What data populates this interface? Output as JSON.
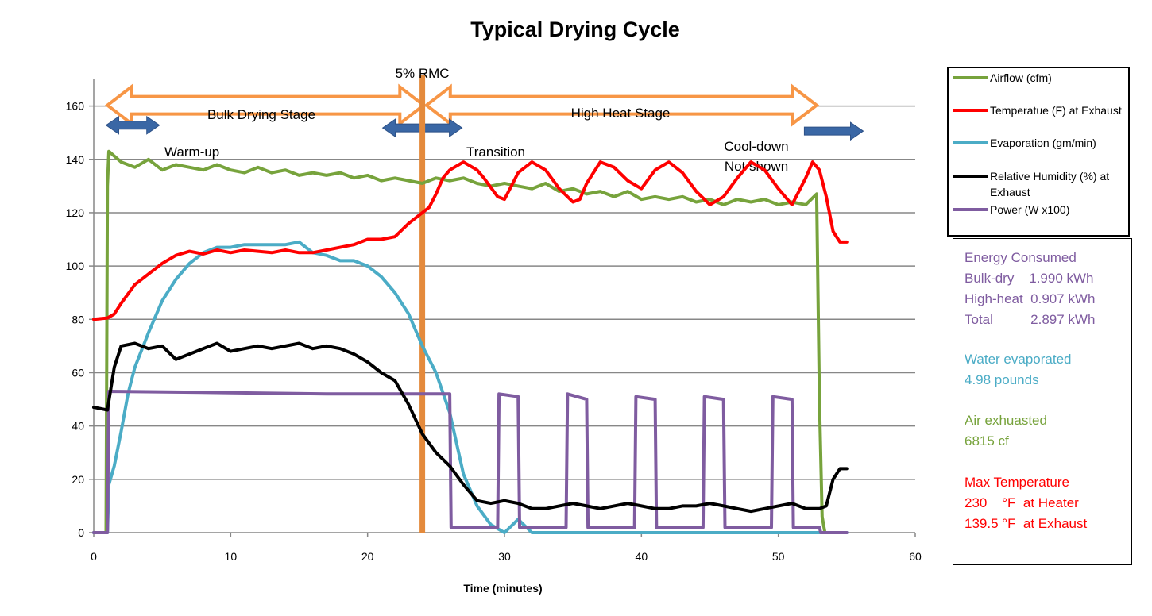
{
  "chart_data": {
    "type": "line",
    "title": "Typical Drying Cycle",
    "xlabel": "Time (minutes)",
    "ylabel": "",
    "xlim": [
      0,
      60
    ],
    "ylim": [
      0,
      170
    ],
    "x_ticks": [
      "0",
      "10",
      "20",
      "30",
      "40",
      "50",
      "60"
    ],
    "y_ticks": [
      "0",
      "20",
      "40",
      "60",
      "80",
      "100",
      "120",
      "140",
      "160"
    ],
    "grid": "horizontal",
    "legend_position": "top-right",
    "series": [
      {
        "name": "Airflow (cfm)",
        "color": "#77A33C",
        "points": [
          [
            0,
            0
          ],
          [
            0.9,
            0
          ],
          [
            1.0,
            130
          ],
          [
            1.1,
            143
          ],
          [
            2,
            139
          ],
          [
            3,
            137
          ],
          [
            4,
            140
          ],
          [
            5,
            136
          ],
          [
            6,
            138
          ],
          [
            7,
            137
          ],
          [
            8,
            136
          ],
          [
            9,
            138
          ],
          [
            10,
            136
          ],
          [
            11,
            135
          ],
          [
            12,
            137
          ],
          [
            13,
            135
          ],
          [
            14,
            136
          ],
          [
            15,
            134
          ],
          [
            16,
            135
          ],
          [
            17,
            134
          ],
          [
            18,
            135
          ],
          [
            19,
            133
          ],
          [
            20,
            134
          ],
          [
            21,
            132
          ],
          [
            22,
            133
          ],
          [
            23,
            132
          ],
          [
            24,
            131
          ],
          [
            25,
            133
          ],
          [
            26,
            132
          ],
          [
            27,
            133
          ],
          [
            28,
            131
          ],
          [
            29,
            130
          ],
          [
            30,
            131
          ],
          [
            31,
            130
          ],
          [
            32,
            129
          ],
          [
            33,
            131
          ],
          [
            34,
            128
          ],
          [
            35,
            129
          ],
          [
            36,
            127
          ],
          [
            37,
            128
          ],
          [
            38,
            126
          ],
          [
            39,
            128
          ],
          [
            40,
            125
          ],
          [
            41,
            126
          ],
          [
            42,
            125
          ],
          [
            43,
            126
          ],
          [
            44,
            124
          ],
          [
            45,
            125
          ],
          [
            46,
            123
          ],
          [
            47,
            125
          ],
          [
            48,
            124
          ],
          [
            49,
            125
          ],
          [
            50,
            123
          ],
          [
            51,
            124
          ],
          [
            52,
            123
          ],
          [
            52.8,
            127
          ],
          [
            53.0,
            50
          ],
          [
            53.2,
            6
          ],
          [
            53.4,
            0
          ]
        ]
      },
      {
        "name": "Temperatue (F) at Exhaust",
        "color": "#FF0000",
        "points": [
          [
            0,
            80
          ],
          [
            1,
            80.5
          ],
          [
            1.5,
            82
          ],
          [
            2,
            86
          ],
          [
            3,
            93
          ],
          [
            4,
            97
          ],
          [
            5,
            101
          ],
          [
            6,
            104
          ],
          [
            7,
            105.5
          ],
          [
            8,
            104.5
          ],
          [
            9,
            106
          ],
          [
            10,
            105
          ],
          [
            11,
            106
          ],
          [
            12,
            105.5
          ],
          [
            13,
            105
          ],
          [
            14,
            106
          ],
          [
            15,
            105
          ],
          [
            16,
            105
          ],
          [
            17,
            106
          ],
          [
            18,
            107
          ],
          [
            19,
            108
          ],
          [
            20,
            110
          ],
          [
            21,
            110
          ],
          [
            22,
            111
          ],
          [
            23,
            116
          ],
          [
            24,
            120
          ],
          [
            24.5,
            122
          ],
          [
            25,
            127
          ],
          [
            25.5,
            133
          ],
          [
            26,
            136
          ],
          [
            27,
            139
          ],
          [
            28,
            136
          ],
          [
            28.5,
            133
          ],
          [
            29.5,
            126
          ],
          [
            30,
            125
          ],
          [
            30.5,
            130
          ],
          [
            31,
            135
          ],
          [
            32,
            139
          ],
          [
            33,
            136
          ],
          [
            34,
            129
          ],
          [
            35,
            124
          ],
          [
            35.5,
            125
          ],
          [
            36,
            131
          ],
          [
            37,
            139
          ],
          [
            38,
            137
          ],
          [
            39,
            132
          ],
          [
            40,
            129
          ],
          [
            41,
            136
          ],
          [
            42,
            139
          ],
          [
            43,
            135
          ],
          [
            44,
            128
          ],
          [
            45,
            123
          ],
          [
            46,
            126
          ],
          [
            47,
            133
          ],
          [
            48,
            139
          ],
          [
            49,
            136
          ],
          [
            50,
            129
          ],
          [
            51,
            123
          ],
          [
            52,
            133
          ],
          [
            52.5,
            139
          ],
          [
            53,
            136
          ],
          [
            53.5,
            126
          ],
          [
            54,
            113
          ],
          [
            54.5,
            109
          ],
          [
            55,
            109
          ]
        ]
      },
      {
        "name": "Evaporation (gm/min)",
        "color": "#4BACC6",
        "points": [
          [
            0,
            0
          ],
          [
            1,
            0
          ],
          [
            1.1,
            18
          ],
          [
            1.5,
            25
          ],
          [
            2,
            38
          ],
          [
            2.5,
            52
          ],
          [
            3,
            62
          ],
          [
            4,
            75
          ],
          [
            5,
            87
          ],
          [
            6,
            95
          ],
          [
            7,
            101
          ],
          [
            8,
            105
          ],
          [
            9,
            107
          ],
          [
            10,
            107
          ],
          [
            11,
            108
          ],
          [
            12,
            108
          ],
          [
            13,
            108
          ],
          [
            14,
            108
          ],
          [
            15,
            109
          ],
          [
            16,
            105
          ],
          [
            17,
            104
          ],
          [
            18,
            102
          ],
          [
            19,
            102
          ],
          [
            20,
            100
          ],
          [
            21,
            96
          ],
          [
            22,
            90
          ],
          [
            23,
            82
          ],
          [
            24,
            70
          ],
          [
            25,
            60
          ],
          [
            26,
            45
          ],
          [
            27,
            22
          ],
          [
            28,
            10
          ],
          [
            29,
            3
          ],
          [
            30,
            0
          ],
          [
            31,
            5
          ],
          [
            32,
            0
          ],
          [
            35,
            0
          ],
          [
            55,
            0
          ]
        ]
      },
      {
        "name": "Relative Humidity (%) at Exhaust",
        "color": "#000000",
        "points": [
          [
            0,
            47
          ],
          [
            1,
            46
          ],
          [
            1.5,
            62
          ],
          [
            2,
            70
          ],
          [
            3,
            71
          ],
          [
            4,
            69
          ],
          [
            5,
            70
          ],
          [
            6,
            65
          ],
          [
            7,
            67
          ],
          [
            8,
            69
          ],
          [
            9,
            71
          ],
          [
            10,
            68
          ],
          [
            11,
            69
          ],
          [
            12,
            70
          ],
          [
            13,
            69
          ],
          [
            14,
            70
          ],
          [
            15,
            71
          ],
          [
            16,
            69
          ],
          [
            17,
            70
          ],
          [
            18,
            69
          ],
          [
            19,
            67
          ],
          [
            20,
            64
          ],
          [
            21,
            60
          ],
          [
            22,
            57
          ],
          [
            23,
            48
          ],
          [
            24,
            37
          ],
          [
            25,
            30
          ],
          [
            26,
            25
          ],
          [
            27,
            18
          ],
          [
            28,
            12
          ],
          [
            29,
            11
          ],
          [
            30,
            12
          ],
          [
            31,
            11
          ],
          [
            32,
            9
          ],
          [
            33,
            9
          ],
          [
            34,
            10
          ],
          [
            35,
            11
          ],
          [
            36,
            10
          ],
          [
            37,
            9
          ],
          [
            38,
            10
          ],
          [
            39,
            11
          ],
          [
            40,
            10
          ],
          [
            41,
            9
          ],
          [
            42,
            9
          ],
          [
            43,
            10
          ],
          [
            44,
            10
          ],
          [
            45,
            11
          ],
          [
            46,
            10
          ],
          [
            47,
            9
          ],
          [
            48,
            8
          ],
          [
            49,
            9
          ],
          [
            50,
            10
          ],
          [
            51,
            11
          ],
          [
            52,
            9
          ],
          [
            53,
            9
          ],
          [
            53.5,
            10
          ],
          [
            54,
            20
          ],
          [
            54.5,
            24
          ],
          [
            55,
            24
          ]
        ]
      },
      {
        "name": "Power (W x100)",
        "color": "#7F5CA0",
        "points": [
          [
            0,
            0
          ],
          [
            1,
            0
          ],
          [
            1.1,
            53
          ],
          [
            10,
            52.5
          ],
          [
            17,
            52
          ],
          [
            26,
            52
          ],
          [
            26.1,
            2
          ],
          [
            29.5,
            2
          ],
          [
            29.6,
            52
          ],
          [
            31,
            51
          ],
          [
            31.1,
            2
          ],
          [
            34.5,
            2
          ],
          [
            34.6,
            52
          ],
          [
            36,
            50
          ],
          [
            36.1,
            2
          ],
          [
            39.5,
            2
          ],
          [
            39.6,
            51
          ],
          [
            41,
            50
          ],
          [
            41.1,
            2
          ],
          [
            44.5,
            2
          ],
          [
            44.6,
            51
          ],
          [
            46,
            50
          ],
          [
            46.1,
            2
          ],
          [
            49.5,
            2
          ],
          [
            49.6,
            51
          ],
          [
            51,
            50
          ],
          [
            51.1,
            2
          ],
          [
            53,
            2
          ],
          [
            53.1,
            0
          ],
          [
            55,
            0
          ]
        ]
      }
    ],
    "annotations": {
      "rmc_label": "5% RMC",
      "rmc_x": 24,
      "bulk": "Bulk Drying Stage",
      "high": "High Heat Stage",
      "warmup": "Warm-up",
      "transition": "Transition",
      "cooldown_1": "Cool-down",
      "cooldown_2": "Not shown"
    },
    "colors": {
      "orange": "#F79646",
      "orange_dark": "#E48A3C",
      "blue": "#3A67A5",
      "grid": "#878787"
    }
  },
  "legend": {
    "items": [
      {
        "label": "Airflow (cfm)",
        "color": "#77A33C"
      },
      {
        "label": "Temperatue (F) at Exhaust",
        "color": "#FF0000"
      },
      {
        "label": "Evaporation (gm/min)",
        "color": "#4BACC6"
      },
      {
        "label": "Relative Humidity (%) at Exhaust",
        "color": "#000000"
      },
      {
        "label": "Power (W x100)",
        "color": "#7F5CA0"
      }
    ]
  },
  "info": {
    "energy_title": "Energy Consumed",
    "energy_bulk": "Bulk-dry    1.990 kWh",
    "energy_high": "High-heat  0.907 kWh",
    "energy_total": "Total          2.897 kWh",
    "water_title": "Water evaporated",
    "water_value": "4.98 pounds",
    "air_title": "Air exhuasted",
    "air_value": "6815 cf",
    "temp_title": "Max Temperature",
    "temp_heater": "230    °F  at Heater",
    "temp_exhaust": "139.5 °F  at Exhaust",
    "colors": {
      "purple": "#7F5CA0",
      "cyan": "#4BACC6",
      "green": "#77A33C",
      "red": "#FF0000"
    }
  }
}
